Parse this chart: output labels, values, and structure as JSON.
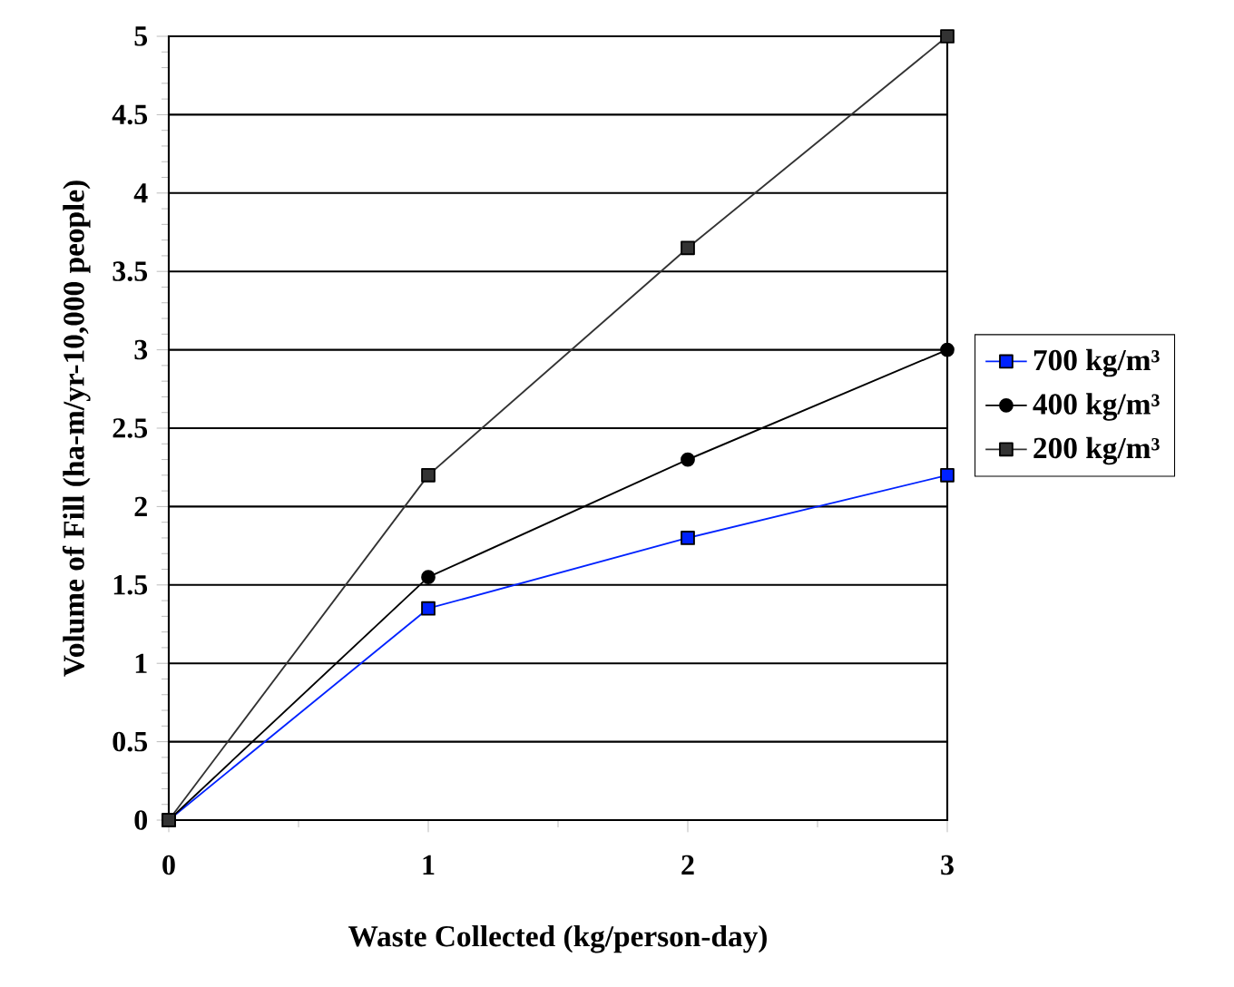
{
  "chart_data": {
    "type": "line",
    "xlabel": "Waste Collected (kg/person-day)",
    "ylabel": "Volume of Fill (ha-m/yr-10,000 people)",
    "x": [
      0,
      1,
      2,
      3
    ],
    "series": [
      {
        "name": "700 kg/m³",
        "color": "#0022ff",
        "marker": "square",
        "values": [
          0,
          1.35,
          1.8,
          2.2
        ]
      },
      {
        "name": "400 kg/m³",
        "color": "#000000",
        "marker": "circle",
        "values": [
          0,
          1.55,
          2.3,
          3.0
        ]
      },
      {
        "name": "200 kg/m³",
        "color": "#333333",
        "marker": "square",
        "values": [
          0,
          2.2,
          3.65,
          5.0
        ]
      }
    ],
    "xlim": [
      0,
      3
    ],
    "xticks": [
      0,
      1,
      2,
      3
    ],
    "ylim": [
      0,
      5
    ],
    "yticks": [
      0,
      0.5,
      1,
      1.5,
      2,
      2.5,
      3,
      3.5,
      4,
      4.5,
      5
    ],
    "grid": "y",
    "legend": "right",
    "line_style": "solid"
  }
}
